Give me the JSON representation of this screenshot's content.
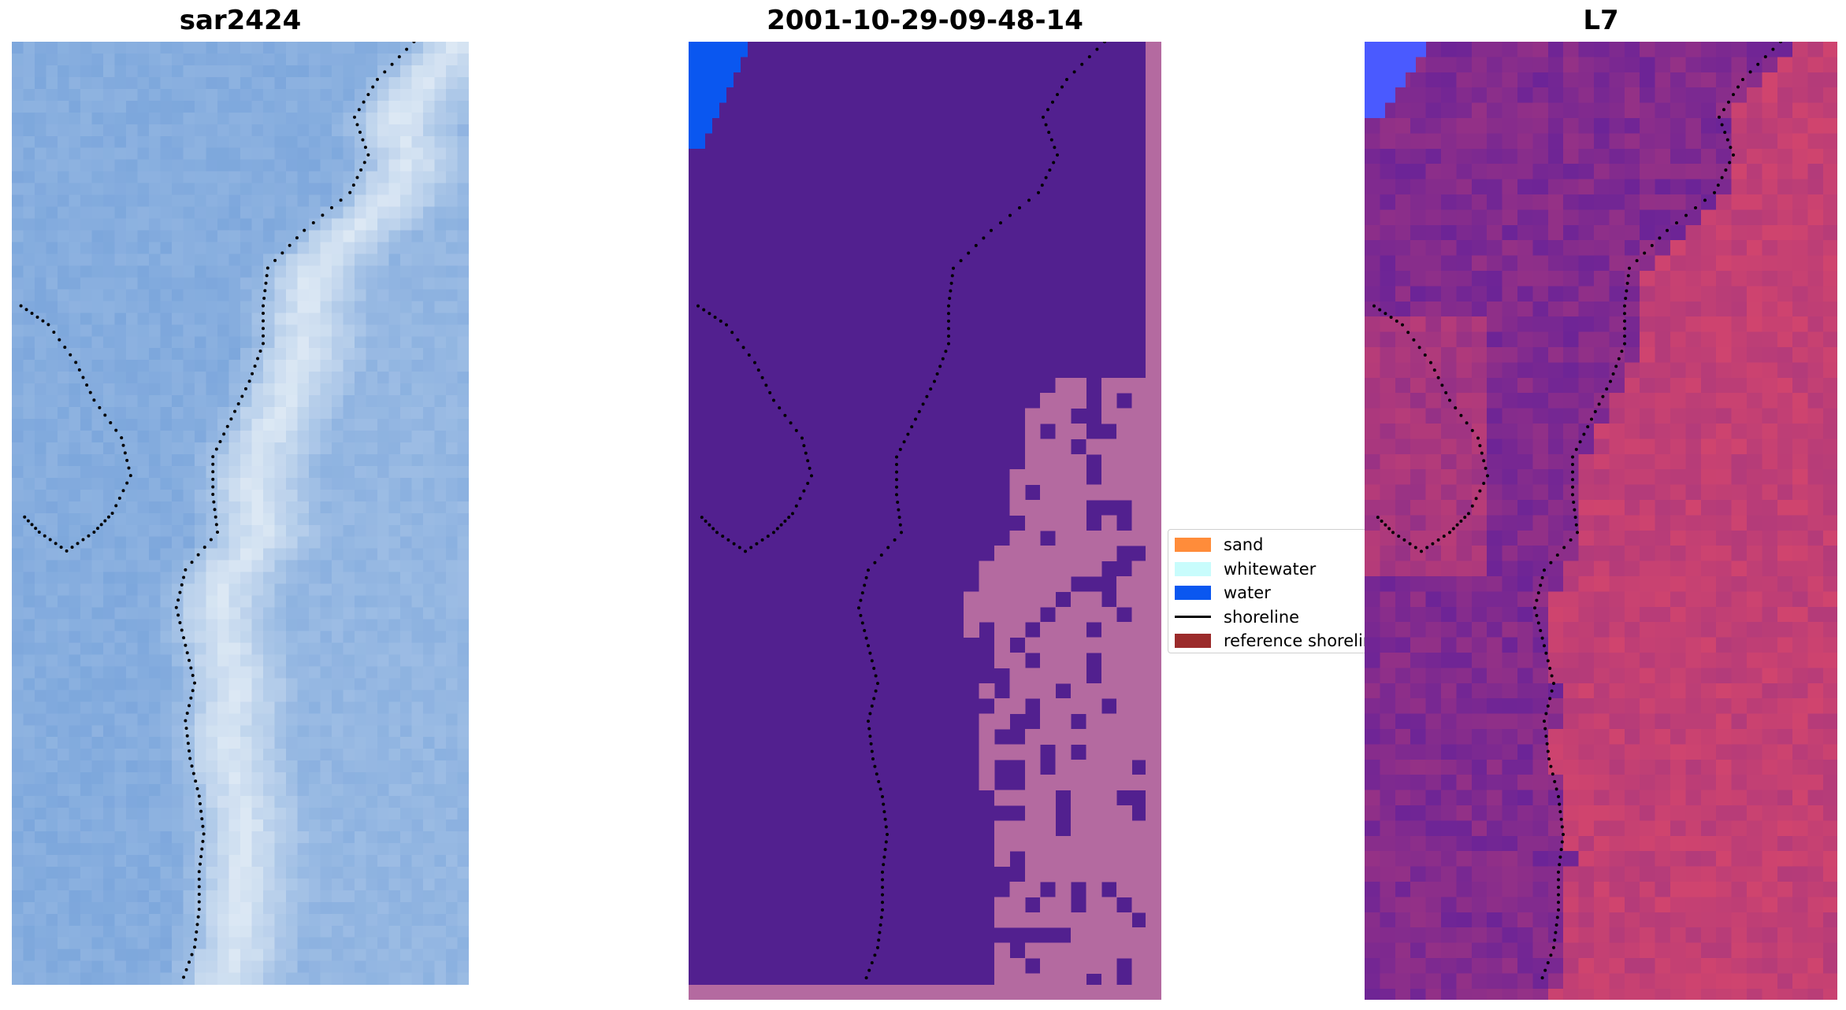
{
  "panels": [
    {
      "id": "rgb",
      "title": "sar2424"
    },
    {
      "id": "classified",
      "title": "2001-10-29-09-48-14"
    },
    {
      "id": "mndwi",
      "title": "L7"
    }
  ],
  "legend": {
    "location": "center, between second and third panels",
    "items": [
      {
        "label": "sand",
        "color": "#ff8c3a",
        "kind": "patch"
      },
      {
        "label": "whitewater",
        "color": "#c8fcfc",
        "kind": "patch"
      },
      {
        "label": "water",
        "color": "#0a57f0",
        "kind": "patch"
      },
      {
        "label": "shoreline",
        "color": "#000000",
        "kind": "line"
      },
      {
        "label": "reference shoreline",
        "color": "#9b2b2b",
        "kind": "patch"
      }
    ]
  },
  "colors": {
    "rgb_base": "#7da7dc",
    "rgb_light": "#dce8f4",
    "class_background": "#52208f",
    "class_land": "#b46aa0",
    "class_water": "#0a57f0",
    "l7_water": "#5a1e9e",
    "l7_land": "#d0446e",
    "l7_sea_corner": "#4a5aff",
    "shoreline_dots": "#000000"
  }
}
